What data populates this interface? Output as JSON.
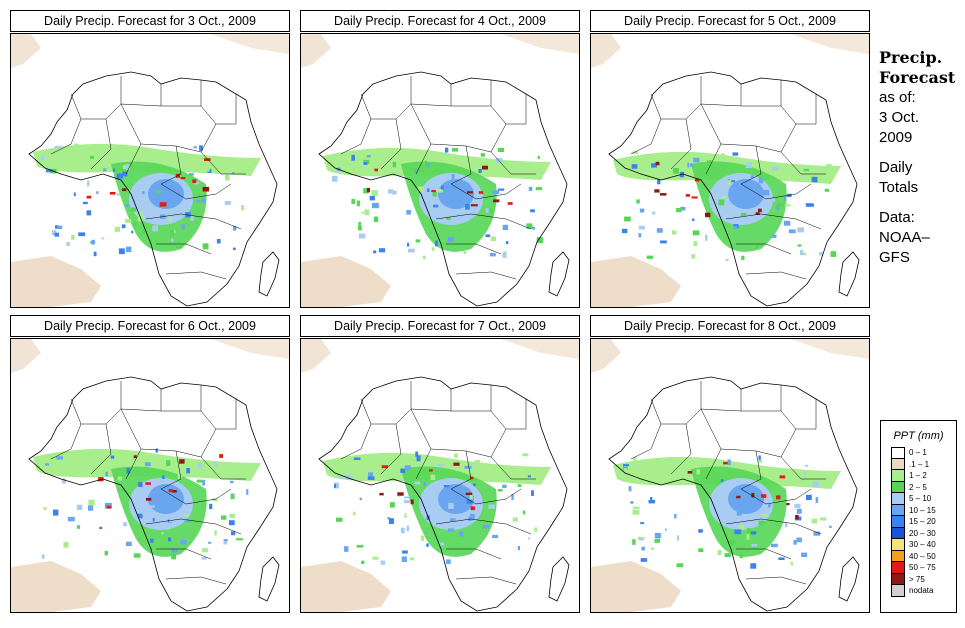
{
  "panels": [
    {
      "title": "Daily Precip. Forecast for  3 Oct., 2009"
    },
    {
      "title": "Daily Precip. Forecast for  4 Oct., 2009"
    },
    {
      "title": "Daily Precip. Forecast for  5 Oct., 2009"
    },
    {
      "title": "Daily Precip. Forecast for  6 Oct., 2009"
    },
    {
      "title": "Daily Precip. Forecast for  7 Oct., 2009"
    },
    {
      "title": "Daily Precip. Forecast for  8 Oct., 2009"
    }
  ],
  "side": {
    "heading1": "Precip.",
    "heading2": "Forecast",
    "as_of": "as of:",
    "date1": "3 Oct.",
    "date2": "2009",
    "totals1": "Daily",
    "totals2": "Totals",
    "data1": "Data:",
    "data2": "NOAA–",
    "data3": "GFS"
  },
  "legend": {
    "title": "PPT (mm)",
    "items": [
      {
        "label": "0 – 1",
        "color": "#ffffff"
      },
      {
        "label": ".1 – 1",
        "color": "#ecd9c2"
      },
      {
        "label": "1 – 2",
        "color": "#a8ee8c"
      },
      {
        "label": "2 – 5",
        "color": "#55d655"
      },
      {
        "label": "5 – 10",
        "color": "#a9ccf3"
      },
      {
        "label": "10 – 15",
        "color": "#6aa6ef"
      },
      {
        "label": "15 – 20",
        "color": "#3a82ee"
      },
      {
        "label": "20 – 30",
        "color": "#1c52d8"
      },
      {
        "label": "30 – 40",
        "color": "#f7e27a"
      },
      {
        "label": "40 – 50",
        "color": "#f2a21a"
      },
      {
        "label": "50 – 75",
        "color": "#e11c0f"
      },
      {
        "label": "> 75",
        "color": "#8c1a12"
      },
      {
        "label": "nodata",
        "color": "#d0d0d0"
      }
    ]
  }
}
